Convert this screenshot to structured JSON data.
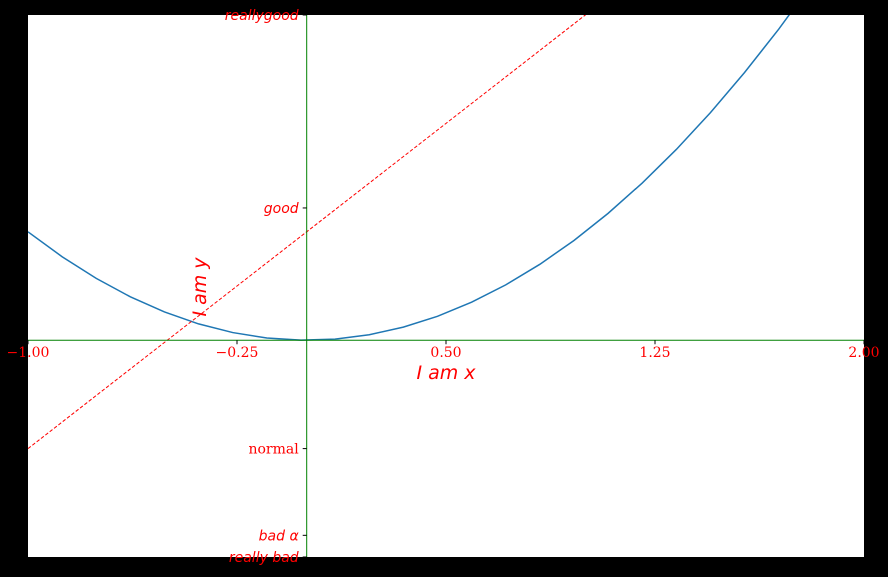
{
  "chart_data": {
    "type": "line",
    "xlabel": "I am x",
    "ylabel": "I am y",
    "xlim": [
      -1,
      2
    ],
    "ylim": [
      -2,
      3
    ],
    "grid": false,
    "spines": "centered at origin",
    "x_ticks": [
      {
        "value": -1.0,
        "label": "−1.00"
      },
      {
        "value": -0.25,
        "label": "−0.25"
      },
      {
        "value": 0.5,
        "label": "0.50"
      },
      {
        "value": 1.25,
        "label": "1.25"
      },
      {
        "value": 2.0,
        "label": "2.00"
      }
    ],
    "y_ticks": [
      {
        "value": -2.0,
        "label": "really bad",
        "style": "italic"
      },
      {
        "value": -1.8,
        "label": "bad α",
        "style": "italic"
      },
      {
        "value": -1.0,
        "label": "normal",
        "style": "serif"
      },
      {
        "value": 1.22,
        "label": "good",
        "style": "italic"
      },
      {
        "value": 3.0,
        "label": "reallygood",
        "style": "italic"
      }
    ],
    "series": [
      {
        "color": "#1f77b4",
        "style": "solid",
        "x": [
          -1.0,
          -0.8776,
          -0.7551,
          -0.6327,
          -0.5102,
          -0.3878,
          -0.2653,
          -0.1429,
          -0.0204,
          0.102,
          0.2245,
          0.3469,
          0.4694,
          0.5918,
          0.7143,
          0.8367,
          0.9592,
          1.0816,
          1.2041,
          1.3265,
          1.449,
          1.5714,
          1.6939,
          1.8163
        ],
        "y": [
          1.0,
          0.7702,
          0.5702,
          0.4003,
          0.2603,
          0.1504,
          0.0704,
          0.0204,
          0.0004,
          0.0104,
          0.0504,
          0.1204,
          0.2203,
          0.3503,
          0.5102,
          0.7001,
          0.92,
          1.17,
          1.4498,
          1.7596,
          2.0995,
          2.4694,
          2.8692,
          3.2991
        ]
      },
      {
        "color": "#ff0000",
        "style": "dashed",
        "x": [
          -1.0,
          2.0
        ],
        "y": [
          -1.0,
          5.0
        ]
      }
    ]
  }
}
